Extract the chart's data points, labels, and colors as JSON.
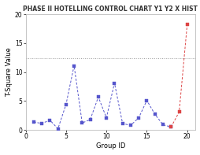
{
  "title": "PHASE II HOTELLING CONTROL CHART Y1 Y2 X HIST",
  "xlabel": "Group ID",
  "ylabel": "T-Square Value",
  "ucl": 12.4,
  "xlim": [
    0,
    21
  ],
  "ylim": [
    0,
    20
  ],
  "xticks": [
    0,
    5,
    10,
    15,
    20
  ],
  "yticks": [
    0,
    5,
    10,
    15,
    20
  ],
  "blue_x": [
    1,
    2,
    3,
    4,
    5,
    6,
    7,
    8,
    9,
    10,
    11,
    12,
    13,
    14,
    15,
    16,
    17,
    18
  ],
  "blue_y": [
    1.4,
    1.1,
    1.7,
    0.2,
    4.4,
    11.1,
    1.2,
    1.8,
    5.7,
    2.1,
    8.1,
    1.1,
    0.8,
    2.1,
    5.1,
    2.7,
    0.9,
    0.5
  ],
  "red_x": [
    18,
    19,
    20
  ],
  "red_y": [
    0.5,
    3.1,
    18.3
  ],
  "blue_color": "#5555cc",
  "red_color": "#dd4444",
  "ucl_color": "#999999",
  "plot_bg": "#ffffff",
  "fig_bg": "#ffffff",
  "title_fontsize": 5.5,
  "label_fontsize": 6.0,
  "tick_fontsize": 5.5,
  "linewidth": 0.7,
  "markersize": 2.2
}
